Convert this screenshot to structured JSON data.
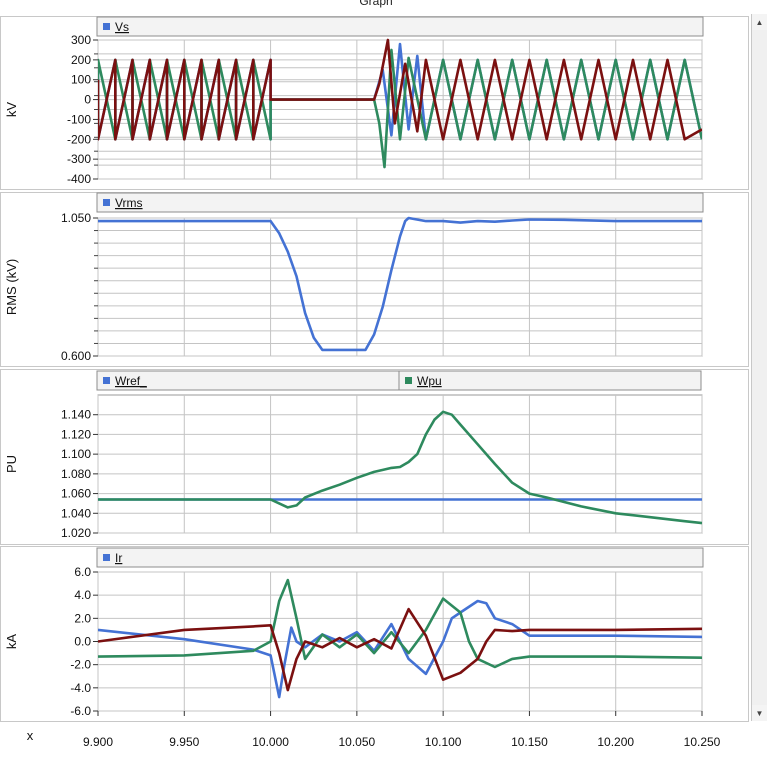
{
  "window": {
    "title": "Graph"
  },
  "x_axis": {
    "label": "x",
    "ticks": [
      "9.900",
      "9.950",
      "10.000",
      "10.050",
      "10.100",
      "10.150",
      "10.200",
      "10.250"
    ],
    "range": [
      9.9,
      10.25
    ]
  },
  "chart_data": [
    {
      "type": "line",
      "ylabel": "kV",
      "ylim": [
        -400,
        300
      ],
      "yticks": [
        "300",
        "200",
        "100",
        "0",
        "-100",
        "-200",
        "-300",
        "-400"
      ],
      "legend": [
        "Vs"
      ],
      "series": [
        {
          "name": "Vs",
          "color": "#4472d4",
          "x": [
            9.9,
            9.9,
            9.9,
            9.91,
            9.91,
            9.91,
            9.92,
            9.92,
            9.92,
            9.93,
            9.93,
            9.93,
            9.94,
            9.94,
            9.94,
            9.95,
            9.95,
            9.95,
            9.96,
            9.96,
            9.96,
            9.97,
            9.97,
            9.97,
            9.98,
            9.98,
            9.98,
            9.99,
            9.99,
            9.99,
            10.0,
            10.0,
            10.0,
            10.0,
            10.001,
            10.06,
            10.065,
            10.07,
            10.075,
            10.08,
            10.085,
            10.09,
            10.1,
            10.11,
            10.12,
            10.13,
            10.14,
            10.15,
            10.16,
            10.17,
            10.18,
            10.19,
            10.2,
            10.21,
            10.22,
            10.23,
            10.24,
            10.25
          ],
          "y": [
            200,
            0,
            -200,
            200,
            0,
            -200,
            200,
            0,
            -200,
            200,
            0,
            -200,
            200,
            0,
            -200,
            200,
            0,
            -200,
            200,
            0,
            -200,
            200,
            0,
            -200,
            200,
            0,
            -200,
            200,
            0,
            -200,
            200,
            0,
            -200,
            0,
            0,
            0,
            150,
            -180,
            280,
            -150,
            220,
            -200,
            200,
            -200,
            200,
            -200,
            200,
            -200,
            200,
            -200,
            200,
            -200,
            200,
            -200,
            200,
            -200,
            200,
            -200
          ]
        },
        {
          "name": "",
          "color": "#2e8a5e",
          "x": [
            9.9,
            9.9,
            9.91,
            9.91,
            9.92,
            9.92,
            9.93,
            9.93,
            9.94,
            9.94,
            9.95,
            9.95,
            9.96,
            9.96,
            9.97,
            9.97,
            9.98,
            9.98,
            9.99,
            9.99,
            10.0,
            10.0,
            10.001,
            10.06,
            10.063,
            10.066,
            10.07,
            10.075,
            10.08,
            10.09,
            10.1,
            10.11,
            10.12,
            10.13,
            10.14,
            10.15,
            10.16,
            10.17,
            10.18,
            10.19,
            10.2,
            10.21,
            10.22,
            10.23,
            10.24,
            10.25
          ],
          "y": [
            -200,
            200,
            -200,
            200,
            -200,
            200,
            -200,
            200,
            -200,
            200,
            -200,
            200,
            -200,
            200,
            -200,
            200,
            -200,
            200,
            -200,
            200,
            -200,
            0,
            0,
            0,
            -120,
            -340,
            250,
            -200,
            210,
            -200,
            200,
            -200,
            200,
            -200,
            200,
            -200,
            200,
            -200,
            200,
            -200,
            200,
            -200,
            200,
            -200,
            200,
            -200
          ]
        },
        {
          "name": "",
          "color": "#7b1010",
          "x": [
            9.9,
            9.9,
            9.91,
            9.91,
            9.92,
            9.92,
            9.93,
            9.93,
            9.94,
            9.94,
            9.95,
            9.95,
            9.96,
            9.96,
            9.97,
            9.97,
            9.98,
            9.98,
            9.99,
            9.99,
            10.0,
            10.0,
            10.0,
            10.06,
            10.063,
            10.068,
            10.072,
            10.078,
            10.085,
            10.09,
            10.1,
            10.11,
            10.12,
            10.13,
            10.14,
            10.15,
            10.16,
            10.17,
            10.18,
            10.19,
            10.2,
            10.21,
            10.22,
            10.23,
            10.24,
            10.25
          ],
          "y": [
            100,
            -200,
            200,
            -200,
            200,
            -200,
            200,
            -200,
            200,
            -200,
            200,
            -200,
            200,
            -200,
            200,
            -200,
            200,
            -200,
            200,
            -200,
            200,
            0,
            0,
            0,
            80,
            300,
            -120,
            180,
            -160,
            200,
            -200,
            200,
            -200,
            200,
            -200,
            200,
            -200,
            200,
            -200,
            200,
            -200,
            200,
            -200,
            200,
            -200,
            -150
          ]
        }
      ]
    },
    {
      "type": "line",
      "ylabel": "RMS (kV)",
      "ylim": [
        0.6,
        1.05
      ],
      "yticks": [
        "1.050",
        "0.600"
      ],
      "legend": [
        "Vrms"
      ],
      "series": [
        {
          "name": "Vrms",
          "color": "#4472d4",
          "x": [
            9.9,
            10.0,
            10.005,
            10.01,
            10.015,
            10.02,
            10.025,
            10.03,
            10.04,
            10.05,
            10.055,
            10.06,
            10.065,
            10.07,
            10.075,
            10.078,
            10.08,
            10.09,
            10.1,
            10.11,
            10.12,
            10.13,
            10.14,
            10.15,
            10.17,
            10.2,
            10.25
          ],
          "y": [
            1.04,
            1.04,
            1.0,
            0.94,
            0.86,
            0.74,
            0.66,
            0.62,
            0.62,
            0.62,
            0.62,
            0.67,
            0.76,
            0.88,
            0.99,
            1.04,
            1.05,
            1.04,
            1.04,
            1.035,
            1.04,
            1.038,
            1.042,
            1.045,
            1.044,
            1.04,
            1.04
          ]
        }
      ]
    },
    {
      "type": "line",
      "ylabel": "PU",
      "ylim": [
        1.02,
        1.16
      ],
      "yticks": [
        "1.140",
        "1.120",
        "1.100",
        "1.080",
        "1.060",
        "1.040",
        "1.020"
      ],
      "legend": [
        "Wref_",
        "Wpu"
      ],
      "series": [
        {
          "name": "Wref_",
          "color": "#4472d4",
          "x": [
            9.9,
            10.25
          ],
          "y": [
            1.054,
            1.054
          ]
        },
        {
          "name": "Wpu",
          "color": "#2e8a5e",
          "x": [
            9.9,
            10.0,
            10.005,
            10.01,
            10.015,
            10.02,
            10.03,
            10.04,
            10.05,
            10.06,
            10.07,
            10.075,
            10.08,
            10.085,
            10.09,
            10.095,
            10.1,
            10.105,
            10.11,
            10.12,
            10.13,
            10.14,
            10.15,
            10.16,
            10.18,
            10.2,
            10.22,
            10.24,
            10.25
          ],
          "y": [
            1.054,
            1.054,
            1.05,
            1.046,
            1.048,
            1.056,
            1.063,
            1.069,
            1.076,
            1.082,
            1.086,
            1.087,
            1.092,
            1.1,
            1.12,
            1.135,
            1.143,
            1.14,
            1.13,
            1.11,
            1.09,
            1.071,
            1.06,
            1.056,
            1.047,
            1.04,
            1.036,
            1.032,
            1.03
          ]
        }
      ]
    },
    {
      "type": "line",
      "ylabel": "kA",
      "ylim": [
        -6,
        6
      ],
      "yticks": [
        "6.0",
        "4.0",
        "2.0",
        "0.0",
        "-2.0",
        "-4.0",
        "-6.0"
      ],
      "legend": [
        "Ir"
      ],
      "series": [
        {
          "name": "Ir",
          "color": "#4472d4",
          "x": [
            9.9,
            9.95,
            9.99,
            10.0,
            10.005,
            10.008,
            10.012,
            10.015,
            10.02,
            10.03,
            10.04,
            10.05,
            10.06,
            10.07,
            10.08,
            10.09,
            10.1,
            10.105,
            10.11,
            10.12,
            10.125,
            10.13,
            10.14,
            10.15,
            10.2,
            10.25
          ],
          "y": [
            1.0,
            0.2,
            -0.7,
            -1.2,
            -4.8,
            -2.0,
            1.2,
            0.0,
            -0.5,
            0.6,
            0.0,
            0.8,
            -0.8,
            1.5,
            -1.5,
            -2.8,
            0.0,
            2.0,
            2.5,
            3.5,
            3.3,
            2.0,
            1.5,
            0.5,
            0.5,
            0.4
          ]
        },
        {
          "name": "",
          "color": "#2e8a5e",
          "x": [
            9.9,
            9.95,
            9.99,
            10.0,
            10.005,
            10.01,
            10.015,
            10.02,
            10.03,
            10.04,
            10.05,
            10.06,
            10.07,
            10.08,
            10.09,
            10.1,
            10.11,
            10.115,
            10.12,
            10.13,
            10.14,
            10.15,
            10.2,
            10.25
          ],
          "y": [
            -1.3,
            -1.2,
            -0.8,
            0.0,
            3.5,
            5.3,
            2.0,
            -1.5,
            0.6,
            -0.5,
            0.6,
            -1.0,
            0.8,
            -1.0,
            1.0,
            3.7,
            2.5,
            0.0,
            -1.5,
            -2.2,
            -1.5,
            -1.3,
            -1.3,
            -1.4
          ]
        },
        {
          "name": "",
          "color": "#7b1010",
          "x": [
            9.9,
            9.95,
            9.99,
            10.0,
            10.005,
            10.01,
            10.015,
            10.02,
            10.03,
            10.04,
            10.05,
            10.06,
            10.07,
            10.08,
            10.09,
            10.1,
            10.11,
            10.12,
            10.125,
            10.13,
            10.14,
            10.15,
            10.2,
            10.25
          ],
          "y": [
            0.0,
            1.0,
            1.3,
            1.4,
            -1.0,
            -4.2,
            -1.5,
            0.0,
            -0.5,
            0.3,
            -0.5,
            0.2,
            -0.6,
            2.8,
            0.5,
            -3.3,
            -2.7,
            -1.5,
            0.0,
            1.0,
            0.9,
            1.0,
            1.0,
            1.1
          ]
        }
      ]
    }
  ]
}
